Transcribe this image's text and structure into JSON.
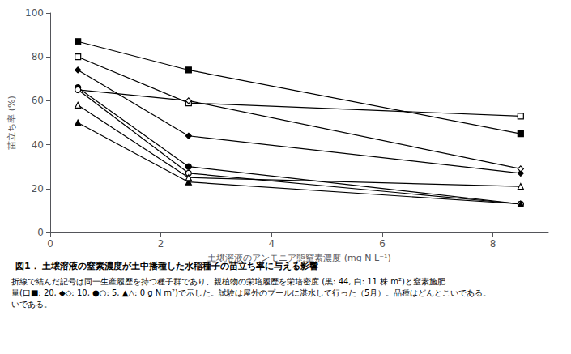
{
  "chart_data": {
    "type": "line",
    "title": "図1． 土壌溶液の窒素濃度が土中播種した水稲種子の苗立ち率に与える影響",
    "annotations": [
      "折線で結んだ記号は同一生産履歴を持つ種子群であり、親植物の栄培履歴を栄培密度 (黒: 44, 白: 11 株 m²)と窒素施肥",
      "量(口■: 20, ◆◇: 10, ●○: 5, ▲△: 0 g N m²)で示した。試験は屋外のプールに湛水して行った（5月）。品種はどんとこいである。",
      "いである。"
    ],
    "xlabel": "土壌溶液のアンモニア態窒素濃度 (mg N L⁻¹)",
    "ylabel": "苗立ち率 (%)",
    "xlim": [
      0,
      9
    ],
    "ylim": [
      0,
      100
    ],
    "xticks": [
      0,
      2,
      4,
      6,
      8
    ],
    "yticks": [
      0,
      20,
      40,
      60,
      80,
      100
    ],
    "grid": false,
    "color": "#000000",
    "series": [
      {
        "x": [
          0.5,
          2.5,
          8.5
        ],
        "values": [
          87,
          74,
          45
        ],
        "marker": "square-filled"
      },
      {
        "x": [
          0.5,
          2.5,
          8.5
        ],
        "values": [
          80,
          59,
          53
        ],
        "marker": "square-open"
      },
      {
        "x": [
          0.5,
          2.5,
          8.5
        ],
        "values": [
          74,
          44,
          27
        ],
        "marker": "diamond-filled"
      },
      {
        "x": [
          0.5,
          2.5,
          8.5
        ],
        "values": [
          65,
          60,
          29
        ],
        "marker": "diamond-open"
      },
      {
        "x": [
          0.5,
          2.5,
          8.5
        ],
        "values": [
          66,
          30,
          13
        ],
        "marker": "circle-filled"
      },
      {
        "x": [
          0.5,
          2.5,
          8.5
        ],
        "values": [
          65,
          27,
          13
        ],
        "marker": "circle-open"
      },
      {
        "x": [
          0.5,
          2.5,
          8.5
        ],
        "values": [
          50,
          23,
          13
        ],
        "marker": "triangle-filled"
      },
      {
        "x": [
          0.5,
          2.5,
          8.5
        ],
        "values": [
          58,
          25,
          21
        ],
        "marker": "triangle-open"
      }
    ]
  }
}
